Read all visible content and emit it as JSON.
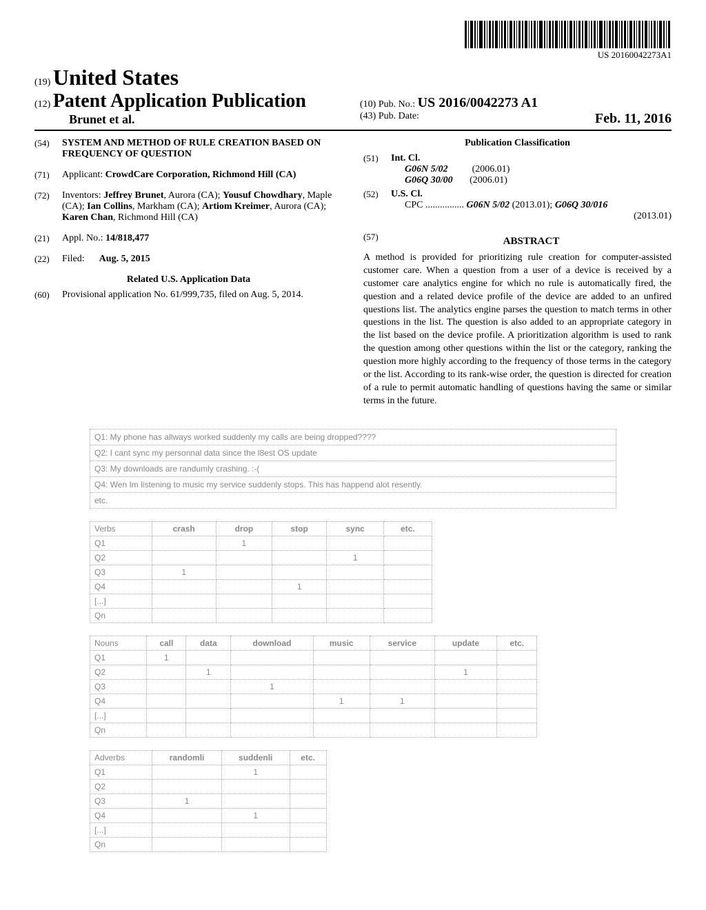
{
  "barcode_text": "US 20160042273A1",
  "header": {
    "num19": "(19)",
    "country": "United States",
    "num12": "(12)",
    "pub_type": "Patent Application Publication",
    "authors": "Brunet et al.",
    "num10": "(10)",
    "pub_no_label": "Pub. No.:",
    "pub_no": "US 2016/0042273 A1",
    "num43": "(43)",
    "pub_date_label": "Pub. Date:",
    "pub_date": "Feb. 11, 2016"
  },
  "left": {
    "num54": "(54)",
    "title": "SYSTEM AND METHOD OF RULE CREATION BASED ON FREQUENCY OF QUESTION",
    "num71": "(71)",
    "applicant_label": "Applicant:",
    "applicant": "CrowdCare Corporation, Richmond Hill (CA)",
    "num72": "(72)",
    "inventors_label": "Inventors:",
    "inventors": "Jeffrey Brunet, Aurora (CA); Yousuf Chowdhary, Maple (CA); Ian Collins, Markham (CA); Artiom Kreimer, Aurora (CA); Karen Chan, Richmond Hill (CA)",
    "num21": "(21)",
    "appl_no_label": "Appl. No.:",
    "appl_no": "14/818,477",
    "num22": "(22)",
    "filed_label": "Filed:",
    "filed": "Aug. 5, 2015",
    "related_title": "Related U.S. Application Data",
    "num60": "(60)",
    "provisional": "Provisional application No. 61/999,735, filed on Aug. 5, 2014."
  },
  "right": {
    "pub_class_title": "Publication Classification",
    "num51": "(51)",
    "int_cl_label": "Int. Cl.",
    "int_cl": [
      {
        "code": "G06N 5/02",
        "year": "(2006.01)"
      },
      {
        "code": "G06Q 30/00",
        "year": "(2006.01)"
      }
    ],
    "num52": "(52)",
    "us_cl_label": "U.S. Cl.",
    "cpc_label": "CPC ................",
    "cpc1": "G06N 5/02",
    "cpc1_year": "(2013.01);",
    "cpc2": "G06Q 30/016",
    "cpc2_year": "(2013.01)",
    "num57": "(57)",
    "abstract_title": "ABSTRACT",
    "abstract": "A method is provided for prioritizing rule creation for computer-assisted customer care. When a question from a user of a device is received by a customer care analytics engine for which no rule is automatically fired, the question and a related device profile of the device are added to an unfired questions list. The analytics engine parses the question to match terms in other questions in the list. The question is also added to an appropriate category in the list based on the device profile. A prioritization algorithm is used to rank the question among other questions within the list or the category, ranking the question more highly according to the frequency of those terms in the category or the list. According to its rank-wise order, the question is directed for creation of a rule to permit automatic handling of questions having the same or similar terms in the future."
  },
  "questions": [
    "Q1: My phone has allways worked suddenly my calls are being dropped????",
    "Q2: I cant sync my personnal data since the l8est OS update",
    "Q3: My downloads are randumly crashing. :-(",
    "Q4: Wen Im listening to music my service suddenly stops. This has happend alot resently.",
    "etc."
  ],
  "verbs_table": {
    "title": "Verbs",
    "columns": [
      "crash",
      "drop",
      "stop",
      "sync",
      "etc."
    ],
    "rows": [
      {
        "label": "Q1",
        "cells": [
          "",
          "1",
          "",
          "",
          ""
        ]
      },
      {
        "label": "Q2",
        "cells": [
          "",
          "",
          "",
          "1",
          ""
        ]
      },
      {
        "label": "Q3",
        "cells": [
          "1",
          "",
          "",
          "",
          ""
        ]
      },
      {
        "label": "Q4",
        "cells": [
          "",
          "",
          "1",
          "",
          ""
        ]
      },
      {
        "label": "[...]",
        "cells": [
          "",
          "",
          "",
          "",
          ""
        ]
      },
      {
        "label": "Qn",
        "cells": [
          "",
          "",
          "",
          "",
          ""
        ]
      }
    ]
  },
  "nouns_table": {
    "title": "Nouns",
    "columns": [
      "call",
      "data",
      "download",
      "music",
      "service",
      "update",
      "etc."
    ],
    "rows": [
      {
        "label": "Q1",
        "cells": [
          "1",
          "",
          "",
          "",
          "",
          "",
          ""
        ]
      },
      {
        "label": "Q2",
        "cells": [
          "",
          "1",
          "",
          "",
          "",
          "1",
          ""
        ]
      },
      {
        "label": "Q3",
        "cells": [
          "",
          "",
          "1",
          "",
          "",
          "",
          ""
        ]
      },
      {
        "label": "Q4",
        "cells": [
          "",
          "",
          "",
          "1",
          "1",
          "",
          ""
        ]
      },
      {
        "label": "[...]",
        "cells": [
          "",
          "",
          "",
          "",
          "",
          "",
          ""
        ]
      },
      {
        "label": "Qn",
        "cells": [
          "",
          "",
          "",
          "",
          "",
          "",
          ""
        ]
      }
    ]
  },
  "adverbs_table": {
    "title": "Adverbs",
    "columns": [
      "randomli",
      "suddenli",
      "etc."
    ],
    "rows": [
      {
        "label": "Q1",
        "cells": [
          "",
          "1",
          ""
        ]
      },
      {
        "label": "Q2",
        "cells": [
          "",
          "",
          ""
        ]
      },
      {
        "label": "Q3",
        "cells": [
          "1",
          "",
          ""
        ]
      },
      {
        "label": "Q4",
        "cells": [
          "",
          "1",
          ""
        ]
      },
      {
        "label": "[...]",
        "cells": [
          "",
          "",
          ""
        ]
      },
      {
        "label": "Qn",
        "cells": [
          "",
          "",
          ""
        ]
      }
    ]
  }
}
